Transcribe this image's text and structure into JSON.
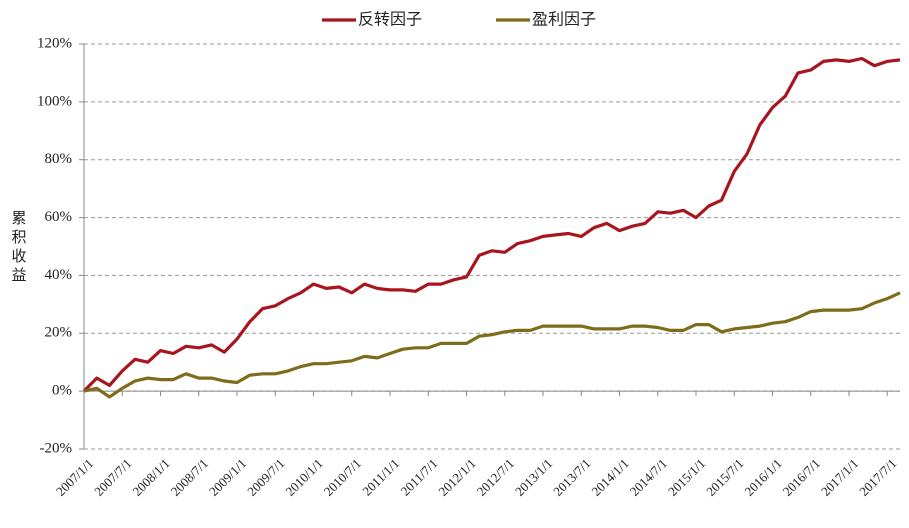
{
  "chart_data": {
    "type": "line",
    "y_label": "累积收益",
    "x": [
      "2007/1/1",
      "2007/3/1",
      "2007/5/1",
      "2007/7/1",
      "2007/9/1",
      "2007/11/1",
      "2008/1/1",
      "2008/3/1",
      "2008/5/1",
      "2008/7/1",
      "2008/9/1",
      "2008/11/1",
      "2009/1/1",
      "2009/3/1",
      "2009/5/1",
      "2009/7/1",
      "2009/9/1",
      "2009/11/1",
      "2010/1/1",
      "2010/3/1",
      "2010/5/1",
      "2010/7/1",
      "2010/9/1",
      "2010/11/1",
      "2011/1/1",
      "2011/3/1",
      "2011/5/1",
      "2011/7/1",
      "2011/9/1",
      "2011/11/1",
      "2012/1/1",
      "2012/3/1",
      "2012/5/1",
      "2012/7/1",
      "2012/9/1",
      "2012/11/1",
      "2013/1/1",
      "2013/3/1",
      "2013/5/1",
      "2013/7/1",
      "2013/9/1",
      "2013/11/1",
      "2014/1/1",
      "2014/3/1",
      "2014/5/1",
      "2014/7/1",
      "2014/9/1",
      "2014/11/1",
      "2015/1/1",
      "2015/3/1",
      "2015/5/1",
      "2015/7/1",
      "2015/9/1",
      "2015/11/1",
      "2016/1/1",
      "2016/3/1",
      "2016/5/1",
      "2016/7/1",
      "2016/9/1",
      "2016/11/1",
      "2017/1/1",
      "2017/3/1",
      "2017/5/1",
      "2017/7/1",
      "2017/9/1"
    ],
    "series": [
      {
        "name": "反转因子",
        "color": "#a8151f",
        "values": [
          0,
          4.5,
          2,
          7,
          11,
          10,
          14,
          13,
          15.5,
          15,
          16,
          13.5,
          18,
          24,
          28.5,
          29.5,
          32,
          34,
          37,
          35.5,
          36,
          34,
          37,
          35.5,
          35,
          35,
          34.5,
          37,
          37,
          38.5,
          39.5,
          47,
          48.5,
          48,
          51,
          52,
          53.5,
          54,
          54.5,
          53.5,
          56.5,
          58,
          55.5,
          57,
          58,
          62,
          61.5,
          62.5,
          60,
          64,
          66,
          76,
          82,
          92,
          98,
          102,
          110,
          111,
          114,
          114.5,
          114,
          115,
          112.5,
          114,
          114.5
        ]
      },
      {
        "name": "盈利因子",
        "color": "#7f6c1a",
        "values": [
          0,
          1,
          -2,
          1,
          3.5,
          4.5,
          4,
          4,
          6,
          4.5,
          4.5,
          3.5,
          3,
          5.5,
          6,
          6,
          7,
          8.5,
          9.5,
          9.5,
          10,
          10.5,
          12,
          11.5,
          13,
          14.5,
          15,
          15,
          16.5,
          16.5,
          16.5,
          19,
          19.5,
          20.5,
          21,
          21,
          22.5,
          22.5,
          22.5,
          22.5,
          21.5,
          21.5,
          21.5,
          22.5,
          22.5,
          22,
          21,
          21,
          23,
          23,
          20.5,
          21.5,
          22,
          22.5,
          23.5,
          24,
          25.5,
          27.5,
          28,
          28,
          28,
          28.5,
          30.5,
          32,
          34
        ]
      }
    ],
    "ylim": [
      -20,
      120
    ],
    "yticks": [
      {
        "value": -20,
        "label": "-20%"
      },
      {
        "value": 0,
        "label": "0%"
      },
      {
        "value": 20,
        "label": "20%"
      },
      {
        "value": 40,
        "label": "40%"
      },
      {
        "value": 60,
        "label": "60%"
      },
      {
        "value": 80,
        "label": "80%"
      },
      {
        "value": 100,
        "label": "100%"
      },
      {
        "value": 120,
        "label": "120%"
      }
    ],
    "xticks": [
      "2007/1/1",
      "2007/7/1",
      "2008/1/1",
      "2008/7/1",
      "2009/1/1",
      "2009/7/1",
      "2010/1/1",
      "2010/7/1",
      "2011/1/1",
      "2011/7/1",
      "2012/1/1",
      "2012/7/1",
      "2013/1/1",
      "2013/7/1",
      "2014/1/1",
      "2014/7/1",
      "2015/1/1",
      "2015/7/1",
      "2016/1/1",
      "2016/7/1",
      "2017/1/1",
      "2017/7/1"
    ],
    "grid": true,
    "legend": "top"
  }
}
